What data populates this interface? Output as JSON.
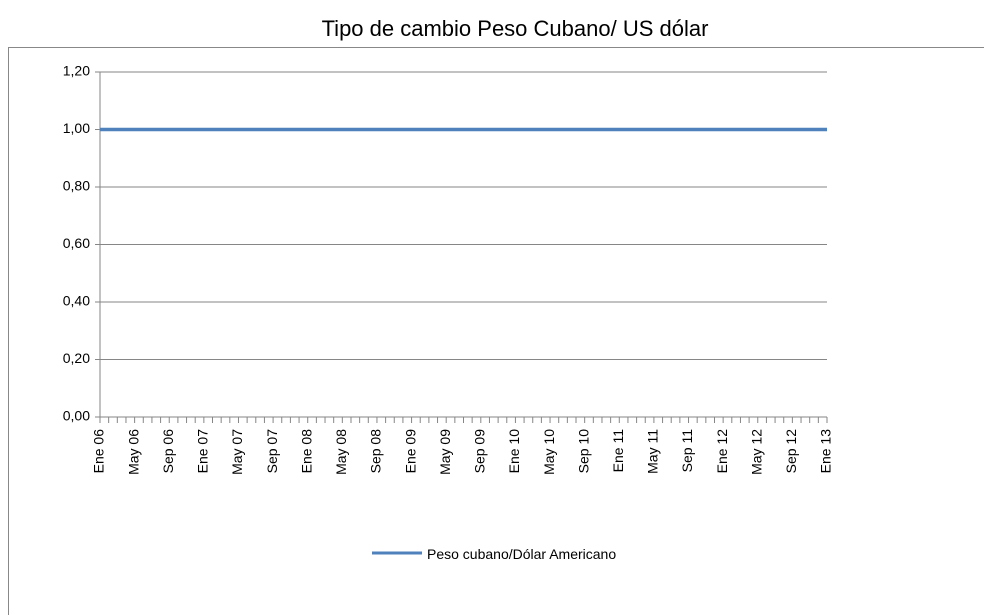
{
  "chart_data": {
    "type": "line",
    "title": "Tipo de cambio Peso Cubano/ US dólar",
    "categories": [
      "Ene 06",
      null,
      null,
      null,
      "May 06",
      null,
      null,
      null,
      "Sep 06",
      null,
      null,
      null,
      "Ene 07",
      null,
      null,
      null,
      "May 07",
      null,
      null,
      null,
      "Sep 07",
      null,
      null,
      null,
      "Ene 08",
      null,
      null,
      null,
      "May 08",
      null,
      null,
      null,
      "Sep 08",
      null,
      null,
      null,
      "Ene 09",
      null,
      null,
      null,
      "May 09",
      null,
      null,
      null,
      "Sep 09",
      null,
      null,
      null,
      "Ene 10",
      null,
      null,
      null,
      "May 10",
      null,
      null,
      null,
      "Sep 10",
      null,
      null,
      null,
      "Ene 11",
      null,
      null,
      null,
      "May 11",
      null,
      null,
      null,
      "Sep 11",
      null,
      null,
      null,
      "Ene 12",
      null,
      null,
      null,
      "May 12",
      null,
      null,
      null,
      "Sep 12",
      null,
      null,
      null,
      "Ene 13"
    ],
    "series": [
      {
        "name": "Peso cubano/Dólar Americano",
        "color": "#4f81bd",
        "values": [
          1,
          1,
          1,
          1,
          1,
          1,
          1,
          1,
          1,
          1,
          1,
          1,
          1,
          1,
          1,
          1,
          1,
          1,
          1,
          1,
          1,
          1,
          1,
          1,
          1,
          1,
          1,
          1,
          1,
          1,
          1,
          1,
          1,
          1,
          1,
          1,
          1,
          1,
          1,
          1,
          1,
          1,
          1,
          1,
          1,
          1,
          1,
          1,
          1,
          1,
          1,
          1,
          1,
          1,
          1,
          1,
          1,
          1,
          1,
          1,
          1,
          1,
          1,
          1,
          1,
          1,
          1,
          1,
          1,
          1,
          1,
          1,
          1,
          1,
          1,
          1,
          1,
          1,
          1,
          1,
          1,
          1,
          1,
          1,
          1
        ]
      }
    ],
    "ylim": [
      0,
      1.2
    ],
    "yticks": [
      {
        "value": 0,
        "label": "0,00"
      },
      {
        "value": 0.2,
        "label": "0,20"
      },
      {
        "value": 0.4,
        "label": "0,40"
      },
      {
        "value": 0.6,
        "label": "0,60"
      },
      {
        "value": 0.8,
        "label": "0,80"
      },
      {
        "value": 1,
        "label": "1,00"
      },
      {
        "value": 1.2,
        "label": "1,20"
      }
    ],
    "grid": true,
    "legend": "bottom"
  }
}
